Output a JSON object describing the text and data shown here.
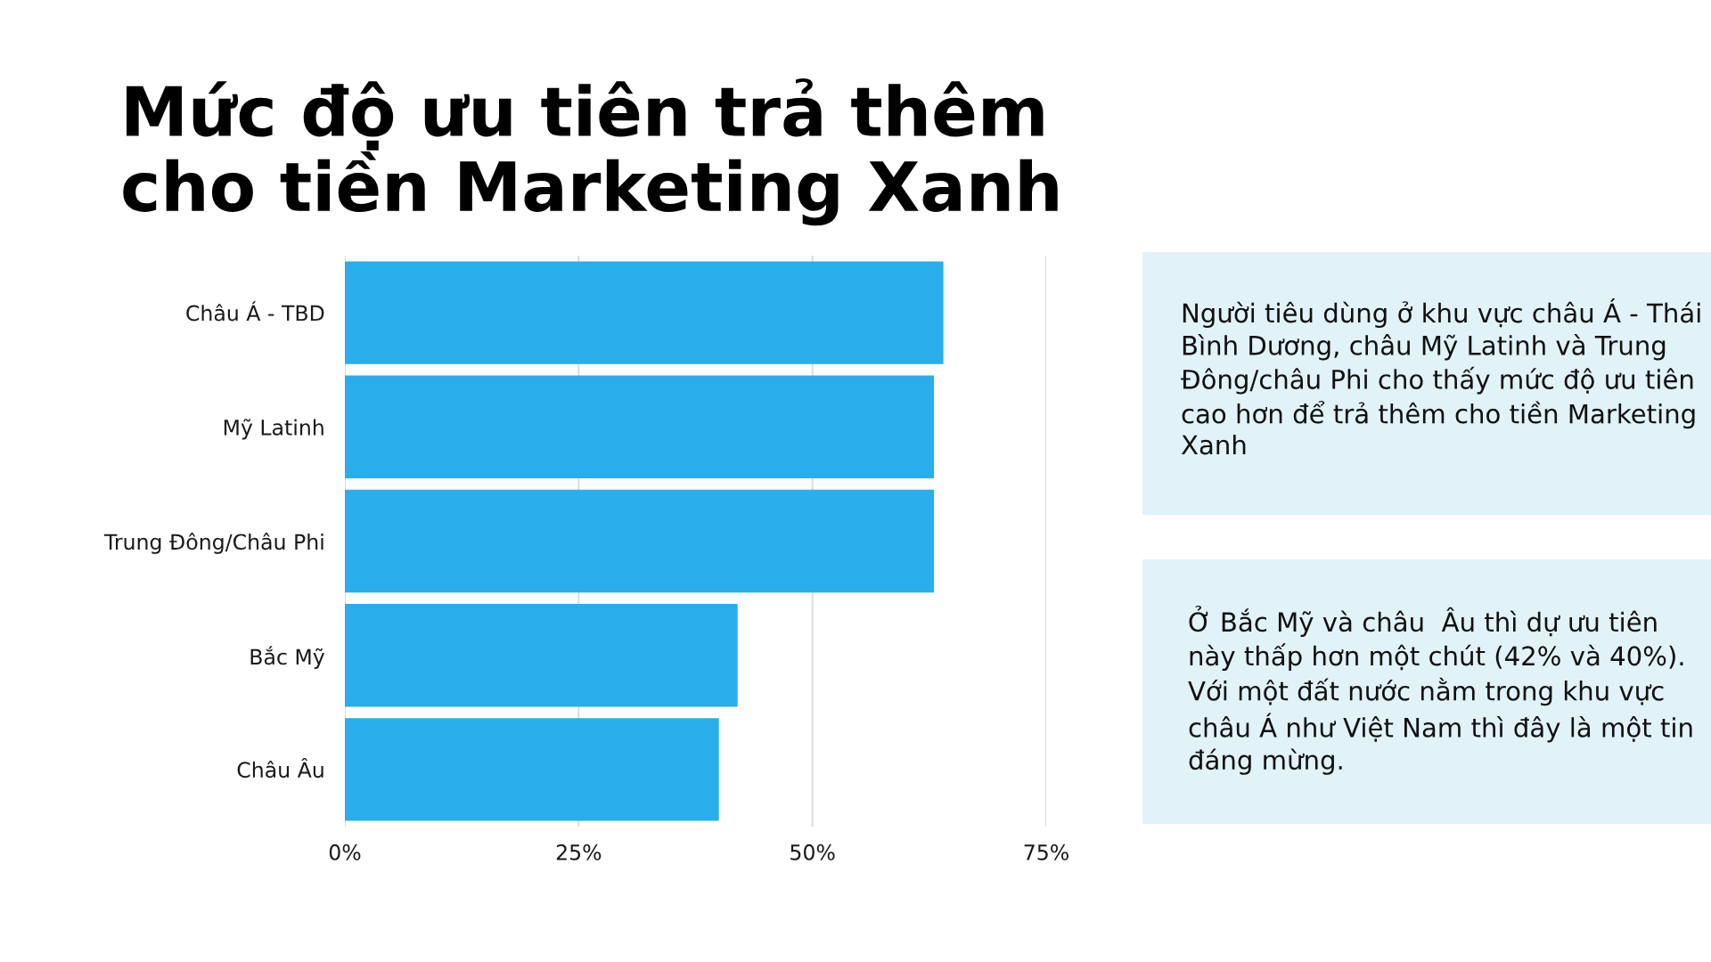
{
  "chart_data": {
    "type": "bar",
    "orientation": "horizontal",
    "title": "Mức độ ưu tiên trả thêm\ncho tiền Marketing Xanh",
    "categories": [
      "Châu Á - TBD",
      "Mỹ Latinh",
      "Trung Đông/Châu Phi",
      "Bắc Mỹ",
      "Châu Âu"
    ],
    "values": [
      64,
      63,
      63,
      42,
      40
    ],
    "color": "#2aaeeb",
    "xlim": [
      0,
      75
    ],
    "xticks": [
      {
        "value": 0,
        "label": "0%"
      },
      {
        "value": 25,
        "label": "25%"
      },
      {
        "value": 50,
        "label": "50%"
      },
      {
        "value": 75,
        "label": "75%"
      }
    ],
    "grid": "x",
    "legend": false,
    "annotations": [
      "Người tiêu dùng ở khu vực châu Á - Thái Bình Dương, châu Mỹ Latinh và Trung Đông/châu Phi cho thấy mức độ ưu tiên cao hơn để trả thêm cho tiền Marketing Xanh",
      "Ở Bắc Mỹ và châu  Âu thì dự ưu tiên này thấp hơn một chút (42% và 40%). Với một đất nước nằm trong khu vực châu Á như Việt Nam thì đây là một tin đáng mừng."
    ]
  }
}
